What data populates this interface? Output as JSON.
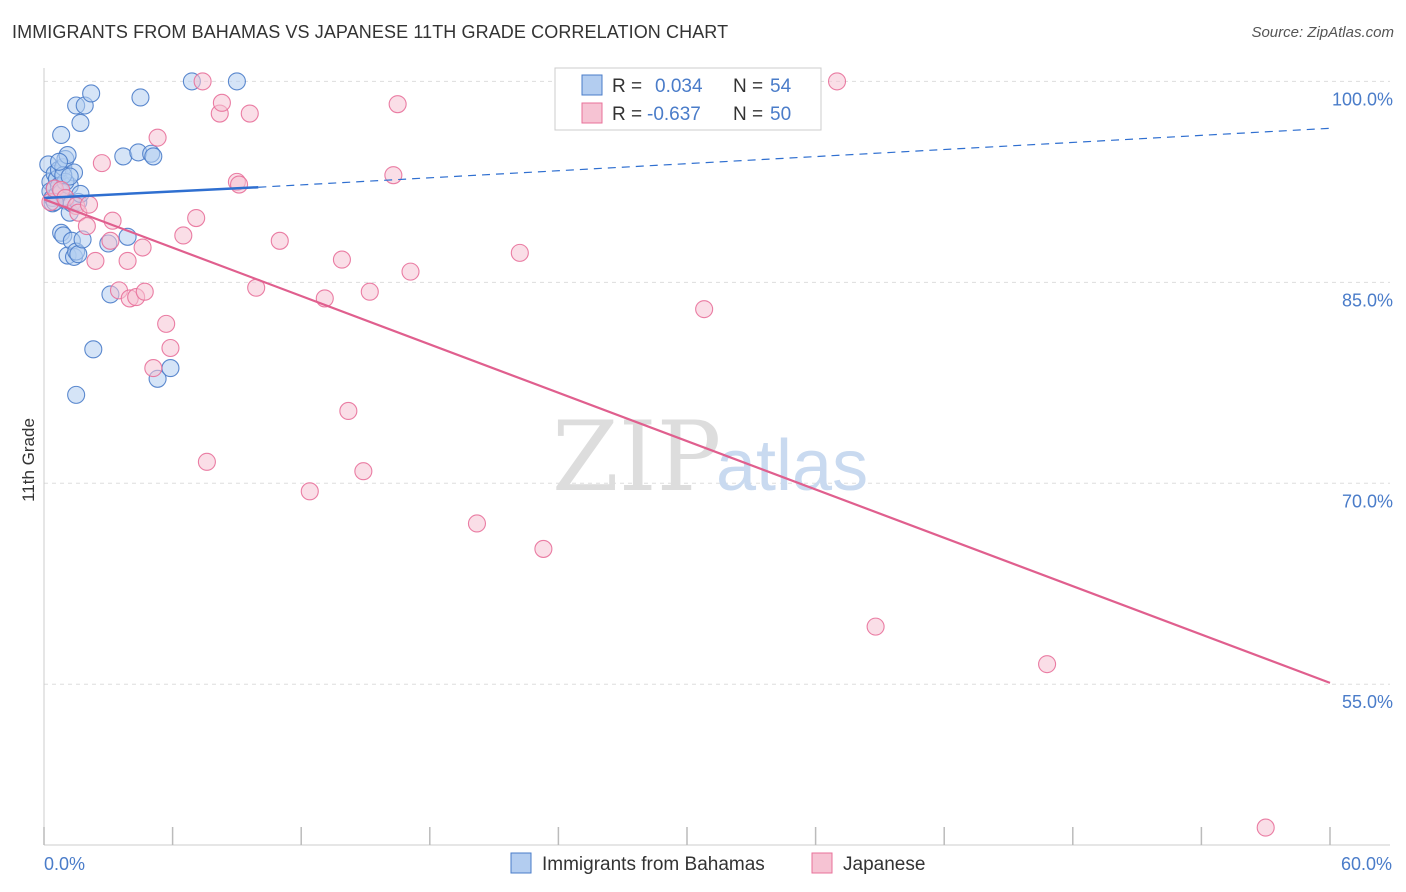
{
  "title": "IMMIGRANTS FROM BAHAMAS VS JAPANESE 11TH GRADE CORRELATION CHART",
  "source": "Source: ZipAtlas.com",
  "colors": {
    "blue": "#4a7cc9",
    "blue_fill": "#b3cdf0",
    "blue_line": "#2f6fd0",
    "pink": "#e8709a",
    "pink_fill": "#f6c3d3",
    "pink_line": "#e05f8e",
    "grid": "#dddddd"
  },
  "legend": {
    "r_label": "R =",
    "n_label": "N =",
    "series": [
      {
        "r": "0.034",
        "n": "54"
      },
      {
        "r": "-0.637",
        "n": "50"
      }
    ]
  },
  "watermark": {
    "zip": "ZIP",
    "atlas": "atlas"
  },
  "chart_data": {
    "type": "scatter",
    "xlabel": "",
    "ylabel": "11th Grade",
    "xlim": [
      0,
      60
    ],
    "ylim": [
      43,
      101
    ],
    "x_tick_labels": [
      {
        "value": 0,
        "label": "0.0%"
      },
      {
        "value": 60,
        "label": "60.0%"
      }
    ],
    "x_minor_ticks": [
      0,
      6,
      12,
      18,
      24,
      30,
      36,
      42,
      48,
      54,
      60
    ],
    "y_tick_labels": [
      {
        "value": 100,
        "label": "100.0%"
      },
      {
        "value": 85,
        "label": "85.0%"
      },
      {
        "value": 70,
        "label": "70.0%"
      },
      {
        "value": 55,
        "label": "55.0%"
      }
    ],
    "y_gridlines": [
      100,
      85,
      70,
      55
    ],
    "series": [
      {
        "name": "Immigrants from Bahamas",
        "color": "blue",
        "trend": {
          "x0": 0,
          "y0": 91.3,
          "x1": 10,
          "y1": 92.1,
          "dash_to_x": 60,
          "dash_to_y": 96.5
        },
        "points": [
          [
            0.2,
            93.8
          ],
          [
            0.3,
            92.5
          ],
          [
            0.3,
            91.8
          ],
          [
            0.4,
            90.9
          ],
          [
            0.4,
            91.3
          ],
          [
            0.5,
            92.0
          ],
          [
            0.5,
            93.1
          ],
          [
            0.6,
            92.7
          ],
          [
            0.6,
            91.5
          ],
          [
            0.7,
            93.4
          ],
          [
            0.7,
            92.2
          ],
          [
            0.8,
            91.7
          ],
          [
            0.8,
            88.7
          ],
          [
            0.8,
            96.0
          ],
          [
            0.9,
            88.5
          ],
          [
            0.9,
            93.6
          ],
          [
            1.0,
            94.2
          ],
          [
            1.0,
            91.1
          ],
          [
            1.1,
            94.5
          ],
          [
            1.1,
            87.0
          ],
          [
            1.2,
            92.2
          ],
          [
            1.2,
            90.2
          ],
          [
            1.3,
            90.9
          ],
          [
            1.3,
            88.1
          ],
          [
            1.4,
            86.9
          ],
          [
            1.4,
            93.2
          ],
          [
            1.5,
            87.3
          ],
          [
            1.5,
            98.2
          ],
          [
            1.6,
            87.1
          ],
          [
            1.6,
            91.0
          ],
          [
            1.7,
            96.9
          ],
          [
            1.7,
            91.6
          ],
          [
            1.8,
            88.2
          ],
          [
            1.9,
            98.2
          ],
          [
            1.5,
            76.6
          ],
          [
            2.2,
            99.1
          ],
          [
            2.3,
            80.0
          ],
          [
            3.0,
            87.9
          ],
          [
            3.1,
            84.1
          ],
          [
            3.7,
            94.4
          ],
          [
            3.9,
            88.4
          ],
          [
            4.4,
            94.7
          ],
          [
            4.5,
            98.8
          ],
          [
            5.0,
            94.6
          ],
          [
            5.1,
            94.4
          ],
          [
            5.3,
            77.8
          ],
          [
            5.9,
            78.6
          ],
          [
            6.9,
            100.0
          ],
          [
            9.0,
            100.0
          ],
          [
            1.0,
            92.5
          ],
          [
            0.5,
            91.0
          ],
          [
            0.9,
            93.0
          ],
          [
            1.2,
            92.9
          ],
          [
            0.7,
            94.0
          ]
        ]
      },
      {
        "name": "Japanese",
        "color": "pink",
        "trend": {
          "x0": 0,
          "y0": 91.2,
          "x1": 60,
          "y1": 55.1
        },
        "points": [
          [
            0.3,
            91.0
          ],
          [
            0.5,
            92.0
          ],
          [
            0.8,
            91.9
          ],
          [
            1.0,
            91.3
          ],
          [
            1.5,
            90.7
          ],
          [
            1.6,
            90.2
          ],
          [
            2.0,
            89.2
          ],
          [
            2.4,
            86.6
          ],
          [
            2.7,
            93.9
          ],
          [
            3.1,
            88.1
          ],
          [
            3.2,
            89.6
          ],
          [
            3.5,
            84.4
          ],
          [
            3.9,
            86.6
          ],
          [
            4.0,
            83.8
          ],
          [
            4.3,
            83.9
          ],
          [
            4.6,
            87.6
          ],
          [
            4.7,
            84.3
          ],
          [
            5.1,
            78.6
          ],
          [
            5.3,
            95.8
          ],
          [
            5.7,
            81.9
          ],
          [
            5.9,
            80.1
          ],
          [
            6.5,
            88.5
          ],
          [
            7.1,
            89.8
          ],
          [
            7.4,
            100.0
          ],
          [
            7.6,
            71.6
          ],
          [
            8.2,
            97.6
          ],
          [
            8.3,
            98.4
          ],
          [
            9.0,
            92.5
          ],
          [
            9.1,
            92.3
          ],
          [
            9.6,
            97.6
          ],
          [
            9.9,
            84.6
          ],
          [
            11.0,
            88.1
          ],
          [
            12.4,
            69.4
          ],
          [
            13.1,
            83.8
          ],
          [
            13.9,
            86.7
          ],
          [
            14.2,
            75.4
          ],
          [
            14.9,
            70.9
          ],
          [
            15.2,
            84.3
          ],
          [
            16.3,
            93.0
          ],
          [
            16.5,
            98.3
          ],
          [
            17.1,
            85.8
          ],
          [
            20.2,
            67.0
          ],
          [
            22.2,
            87.2
          ],
          [
            23.3,
            65.1
          ],
          [
            30.8,
            83.0
          ],
          [
            37.0,
            100.0
          ],
          [
            38.8,
            59.3
          ],
          [
            46.8,
            56.5
          ],
          [
            57.0,
            44.3
          ],
          [
            2.1,
            90.8
          ]
        ]
      }
    ]
  },
  "bottom_legend": [
    {
      "label": "Immigrants from Bahamas",
      "color": "blue"
    },
    {
      "label": "Japanese",
      "color": "pink"
    }
  ]
}
